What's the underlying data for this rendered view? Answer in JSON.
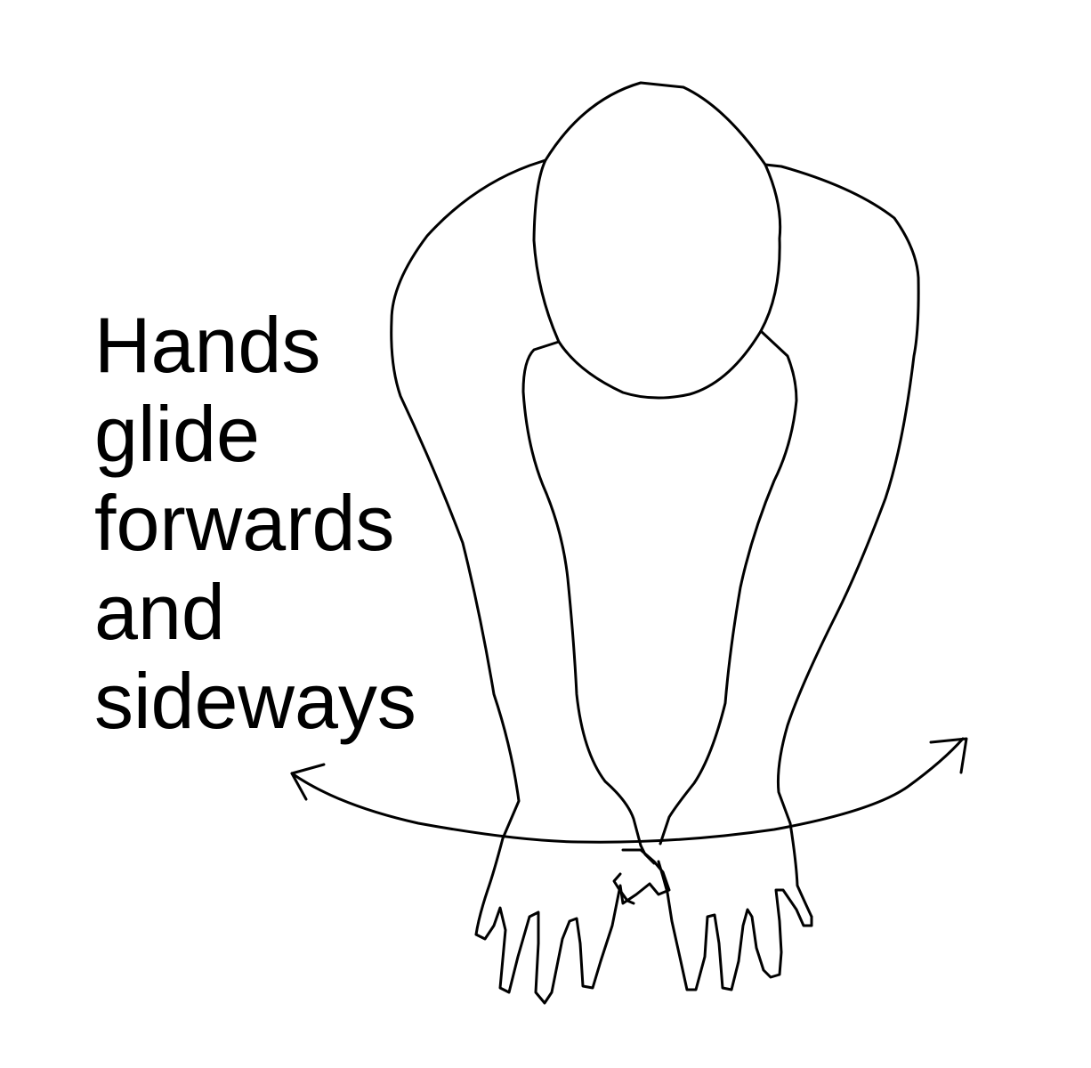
{
  "caption": {
    "lines": [
      "Hands",
      "glide",
      "forwards",
      "and",
      "sideways"
    ]
  },
  "figure": {
    "subject": "person-leaning-forward-hands-on-surface",
    "motion": "bidirectional-curved-arrow",
    "stroke_color": "#000000",
    "background_color": "#ffffff"
  }
}
